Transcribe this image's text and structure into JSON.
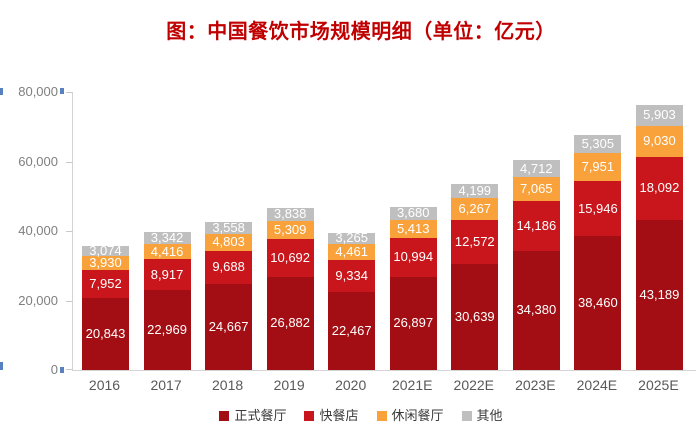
{
  "title": "图：中国餐饮市场规模明细（单位：亿元）",
  "colors": {
    "title": "#C00000",
    "axis_line": "#D4D4D4",
    "y_tick_label": "#7F7F7F",
    "x_tick_label": "#595959",
    "legend_text": "#3A3A3A",
    "value_label": "#FFFFFF",
    "background": "#FFFFFF",
    "artifact_blue": "#3B6CB4"
  },
  "chart_data": {
    "type": "bar",
    "stacked": true,
    "title": "图：中国餐饮市场规模明细（单位：亿元）",
    "unit": "亿元",
    "categories": [
      "2016",
      "2017",
      "2018",
      "2019",
      "2020",
      "2021E",
      "2022E",
      "2023E",
      "2024E",
      "2025E"
    ],
    "series": [
      {
        "name": "正式餐厅",
        "color": "#A20E13",
        "values": [
          20843,
          22969,
          24667,
          26882,
          22467,
          26897,
          30639,
          34380,
          38460,
          43189
        ]
      },
      {
        "name": "快餐店",
        "color": "#C9161C",
        "values": [
          7952,
          8917,
          9688,
          10692,
          9334,
          10994,
          12572,
          14186,
          15946,
          18092
        ]
      },
      {
        "name": "休闲餐厅",
        "color": "#F9A23C",
        "values": [
          3930,
          4416,
          4803,
          5309,
          4461,
          5413,
          6267,
          7065,
          7951,
          9030
        ]
      },
      {
        "name": "其他",
        "color": "#BFBFBF",
        "values": [
          3074,
          3342,
          3558,
          3838,
          3265,
          3680,
          4199,
          4712,
          5305,
          5903
        ]
      }
    ],
    "ylim": [
      0,
      80000
    ],
    "y_ticks": [
      0,
      20000,
      40000,
      60000,
      80000
    ],
    "y_tick_labels": [
      "0",
      "20,000",
      "40,000",
      "60,000",
      "80,000"
    ],
    "xlabel": "",
    "ylabel": "",
    "grid": false,
    "legend_position": "bottom",
    "value_labels": "inside, white, thousands-separated"
  }
}
